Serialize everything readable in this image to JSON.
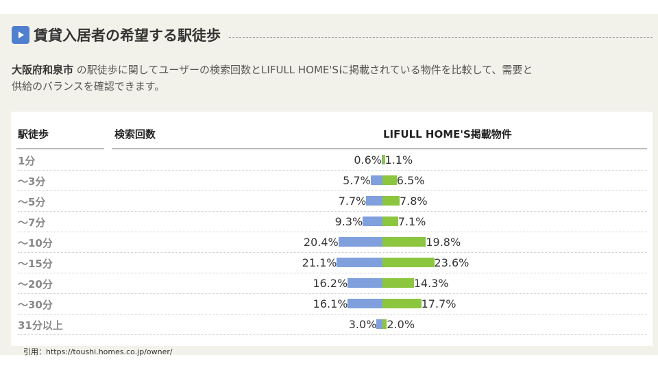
{
  "header": {
    "title": "賃貸入居者の希望する駅徒歩",
    "icon": "play-icon"
  },
  "description": {
    "city": "大阪府和泉市",
    "text_line1": " の駅徒歩に関してユーザーの検索回数とLIFULL HOME'Sに掲載されている物件を比較して、需要と",
    "text_line2": "供給のバランスを確認できます。"
  },
  "table": {
    "columns": [
      "駅徒歩",
      "検索回数",
      "LIFULL HOME'S掲載物件"
    ],
    "colors": {
      "search": "#7fa0dc",
      "listings": "#8cc63f"
    },
    "rows": [
      {
        "label": "1分",
        "search": 0.6,
        "listings": 1.1
      },
      {
        "label": "～3分",
        "search": 5.7,
        "listings": 6.5
      },
      {
        "label": "～5分",
        "search": 7.7,
        "listings": 7.8
      },
      {
        "label": "～7分",
        "search": 9.3,
        "listings": 7.1
      },
      {
        "label": "～10分",
        "search": 20.4,
        "listings": 19.8
      },
      {
        "label": "～15分",
        "search": 21.1,
        "listings": 23.6
      },
      {
        "label": "～20分",
        "search": 16.2,
        "listings": 14.3
      },
      {
        "label": "～30分",
        "search": 16.1,
        "listings": 17.7
      },
      {
        "label": "31分以上",
        "search": 3.0,
        "listings": 2.0
      }
    ]
  },
  "citation": "引用：https://toushi.homes.co.jp/owner/"
}
